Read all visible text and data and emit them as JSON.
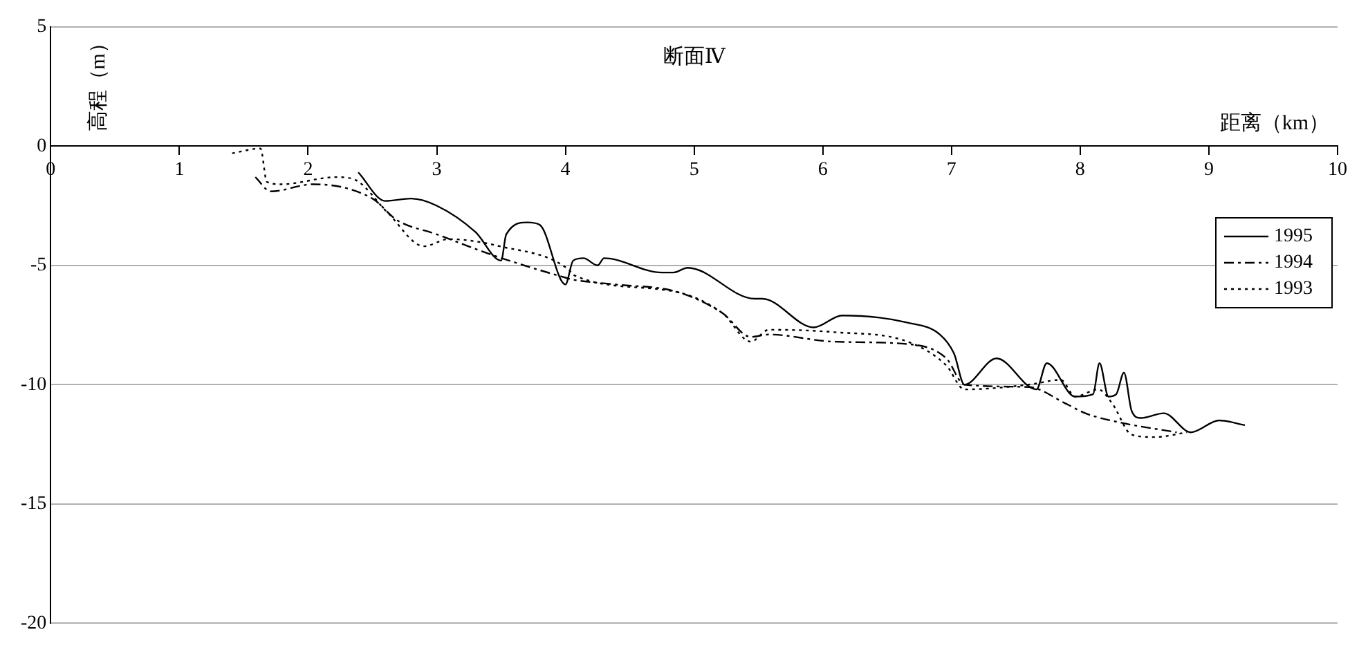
{
  "chart_data": {
    "type": "line",
    "title": "断面Ⅳ",
    "xlabel": "距离（km）",
    "ylabel": "高程（m）",
    "xlim": [
      0,
      10
    ],
    "xticks": [
      0,
      1,
      2,
      3,
      4,
      5,
      6,
      7,
      8,
      9,
      10
    ],
    "ylim": [
      -20,
      5
    ],
    "yticks": [
      -20,
      -15,
      -10,
      -5,
      0,
      5
    ],
    "grid": "y",
    "legend": "right",
    "marker": "none",
    "series": [
      {
        "name": "1995",
        "color": "#000000",
        "line_style": "solid",
        "x": [
          2.39,
          2.6,
          2.8,
          3.0,
          3.3,
          3.5,
          3.54,
          3.7,
          3.8,
          4.0,
          4.06,
          4.14,
          4.25,
          4.3,
          4.75,
          4.84,
          4.95,
          5.47,
          5.53,
          5.93,
          6.15,
          6.66,
          6.91,
          7.02,
          7.1,
          7.35,
          7.66,
          7.74,
          7.96,
          8.1,
          8.15,
          8.22,
          8.28,
          8.34,
          8.4,
          8.47,
          8.65,
          8.86,
          9.08,
          9.28
        ],
        "values": [
          -1.1,
          -2.3,
          -2.2,
          -2.5,
          -3.6,
          -4.8,
          -3.7,
          -3.2,
          -3.3,
          -5.8,
          -4.8,
          -4.7,
          -5.0,
          -4.7,
          -5.3,
          -5.3,
          -5.1,
          -6.4,
          -6.4,
          -7.6,
          -7.1,
          -7.4,
          -7.9,
          -8.7,
          -10.0,
          -8.9,
          -10.2,
          -9.1,
          -10.5,
          -10.4,
          -9.1,
          -10.5,
          -10.4,
          -9.5,
          -11.1,
          -11.4,
          -11.2,
          -12.0,
          -11.5,
          -11.7
        ]
      },
      {
        "name": "1994",
        "color": "#000000",
        "line_style": "dashed",
        "x": [
          1.59,
          1.71,
          2.04,
          2.5,
          2.69,
          3.0,
          3.45,
          3.99,
          4.06,
          4.39,
          4.86,
          5.22,
          5.44,
          5.58,
          6.09,
          6.66,
          6.96,
          7.1,
          7.6,
          7.89,
          8.04,
          8.32,
          8.75
        ],
        "values": [
          -1.3,
          -1.9,
          -1.6,
          -2.2,
          -3.1,
          -3.7,
          -4.6,
          -5.5,
          -5.6,
          -5.8,
          -6.1,
          -7.0,
          -8.0,
          -7.9,
          -8.2,
          -8.3,
          -8.9,
          -10.0,
          -10.1,
          -10.8,
          -11.2,
          -11.6,
          -12.0
        ]
      },
      {
        "name": "1993",
        "color": "#000000",
        "line_style": "dotted",
        "x": [
          1.41,
          1.63,
          1.68,
          1.79,
          2.22,
          2.36,
          2.62,
          2.9,
          3.09,
          3.49,
          4.03,
          4.06,
          4.85,
          5.22,
          5.44,
          5.58,
          6.09,
          6.66,
          6.96,
          7.1,
          7.6,
          7.85,
          7.96,
          8.14,
          8.25,
          8.4,
          8.58,
          8.83
        ],
        "values": [
          -0.3,
          -0.1,
          -1.5,
          -1.6,
          -1.3,
          -1.4,
          -2.8,
          -4.2,
          -3.9,
          -4.2,
          -5.2,
          -5.4,
          -6.1,
          -7.0,
          -8.2,
          -7.7,
          -7.8,
          -8.2,
          -9.2,
          -10.2,
          -10.0,
          -9.8,
          -10.5,
          -10.2,
          -10.8,
          -12.1,
          -12.2,
          -12.0
        ]
      }
    ]
  }
}
